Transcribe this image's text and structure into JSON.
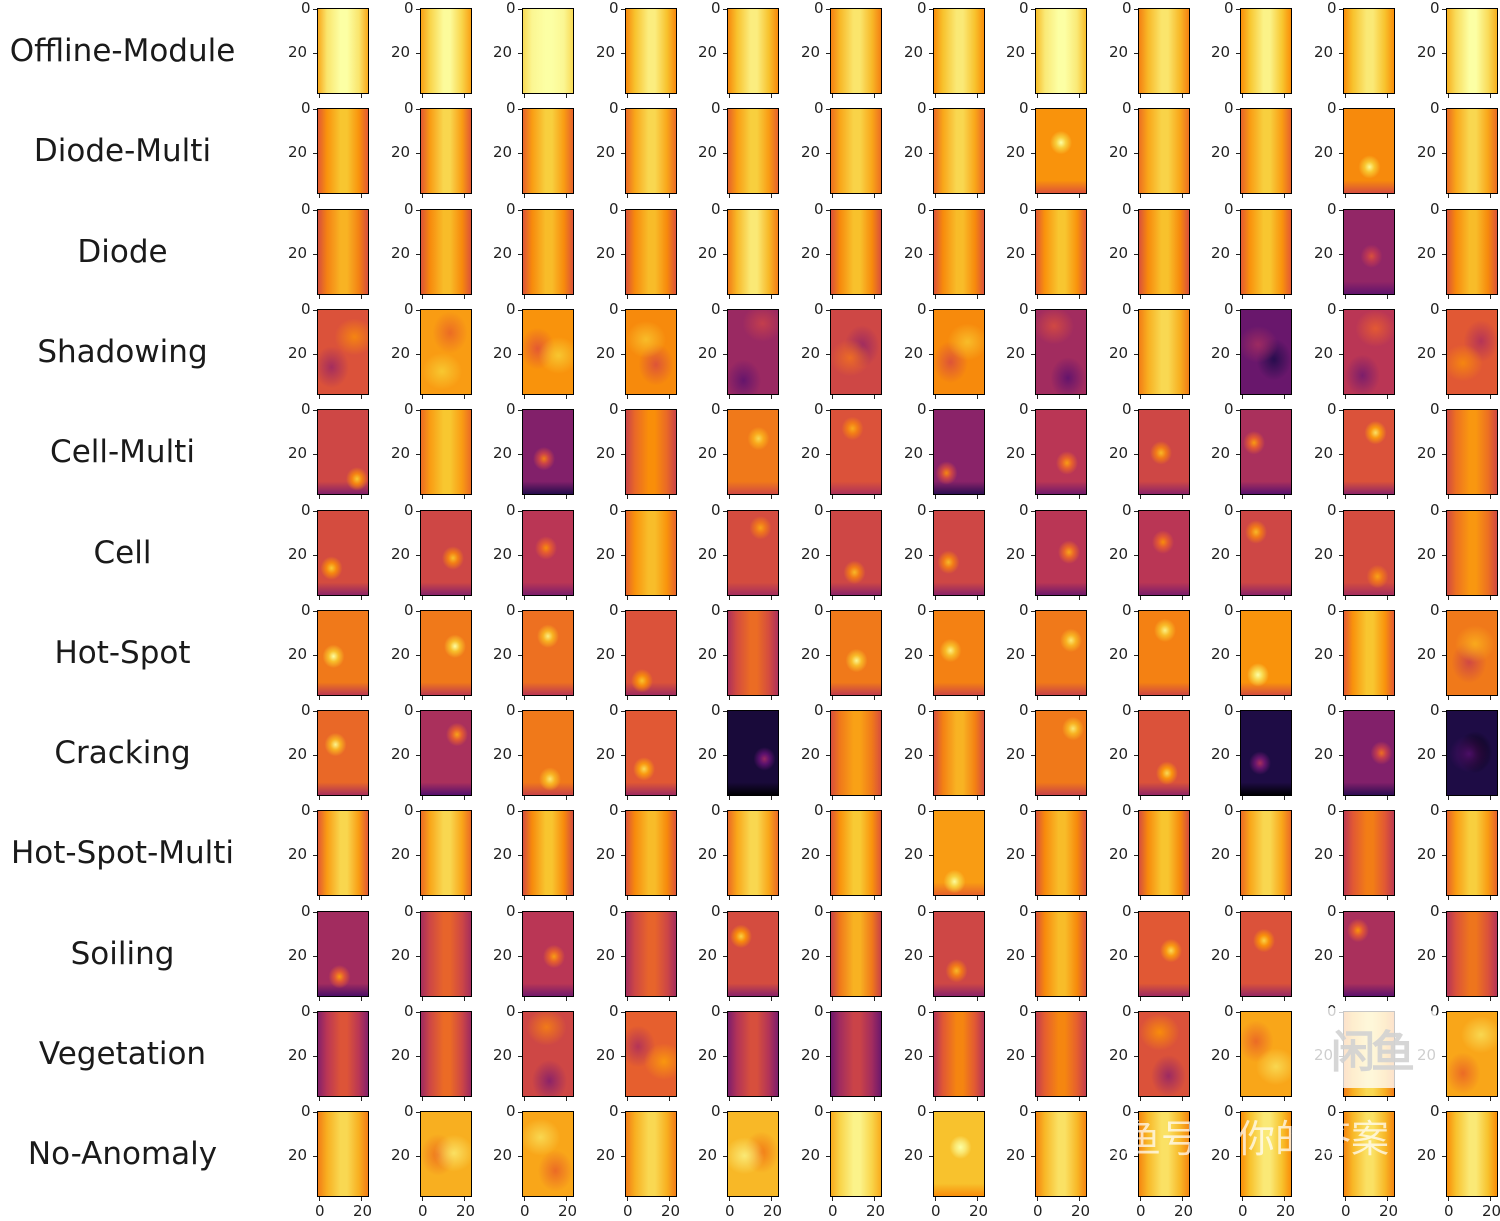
{
  "figure": {
    "rows": [
      {
        "label": "Offline-Module",
        "images": [
          [
            0.94,
            0.6,
            "v"
          ],
          [
            0.9,
            0.5,
            "v"
          ],
          [
            0.98,
            0.3,
            "v"
          ],
          [
            0.86,
            0.55,
            "v"
          ],
          [
            0.86,
            0.55,
            "v"
          ],
          [
            0.84,
            0.55,
            "v"
          ],
          [
            0.86,
            0.5,
            "v"
          ],
          [
            0.95,
            0.45,
            "v"
          ],
          [
            0.84,
            0.55,
            "v"
          ],
          [
            0.87,
            0.55,
            "v"
          ],
          [
            0.86,
            0.5,
            "v"
          ],
          [
            0.92,
            0.45,
            "v"
          ]
        ]
      },
      {
        "label": "Diode-Multi",
        "images": [
          [
            0.76,
            0.6,
            "v"
          ],
          [
            0.78,
            0.7,
            "v"
          ],
          [
            0.78,
            0.6,
            "v"
          ],
          [
            0.8,
            0.6,
            "v"
          ],
          [
            0.78,
            0.6,
            "v"
          ],
          [
            0.8,
            0.55,
            "v"
          ],
          [
            0.8,
            0.6,
            "v"
          ],
          [
            0.76,
            0.7,
            "s"
          ],
          [
            0.8,
            0.55,
            "v"
          ],
          [
            0.78,
            0.6,
            "v"
          ],
          [
            0.74,
            0.7,
            "s"
          ],
          [
            0.8,
            0.6,
            "v"
          ]
        ]
      },
      {
        "label": "Diode",
        "images": [
          [
            0.72,
            0.6,
            "v"
          ],
          [
            0.74,
            0.6,
            "v"
          ],
          [
            0.74,
            0.6,
            "v"
          ],
          [
            0.74,
            0.6,
            "v"
          ],
          [
            0.84,
            0.6,
            "v"
          ],
          [
            0.74,
            0.65,
            "v"
          ],
          [
            0.74,
            0.6,
            "v"
          ],
          [
            0.76,
            0.6,
            "v"
          ],
          [
            0.74,
            0.65,
            "v"
          ],
          [
            0.76,
            0.6,
            "v"
          ],
          [
            0.4,
            0.55,
            "s"
          ],
          [
            0.74,
            0.6,
            "v"
          ]
        ]
      },
      {
        "label": "Shadowing",
        "images": [
          [
            0.6,
            0.7,
            "b"
          ],
          [
            0.78,
            0.5,
            "b"
          ],
          [
            0.76,
            0.6,
            "b"
          ],
          [
            0.74,
            0.6,
            "b"
          ],
          [
            0.42,
            0.6,
            "b"
          ],
          [
            0.56,
            0.6,
            "b"
          ],
          [
            0.74,
            0.6,
            "b"
          ],
          [
            0.44,
            0.7,
            "b"
          ],
          [
            0.82,
            0.5,
            "v"
          ],
          [
            0.3,
            0.7,
            "b"
          ],
          [
            0.5,
            0.7,
            "b"
          ],
          [
            0.62,
            0.6,
            "b"
          ]
        ]
      },
      {
        "label": "Cell-Multi",
        "images": [
          [
            0.56,
            0.9,
            "s"
          ],
          [
            0.78,
            0.5,
            "v"
          ],
          [
            0.36,
            1.0,
            "s"
          ],
          [
            0.66,
            0.5,
            "v"
          ],
          [
            0.7,
            0.6,
            "s"
          ],
          [
            0.6,
            0.6,
            "s"
          ],
          [
            0.38,
            1.0,
            "s"
          ],
          [
            0.5,
            0.8,
            "s"
          ],
          [
            0.56,
            0.8,
            "s"
          ],
          [
            0.46,
            0.9,
            "s"
          ],
          [
            0.6,
            0.95,
            "s"
          ],
          [
            0.68,
            0.5,
            "v"
          ]
        ]
      },
      {
        "label": "Cell",
        "images": [
          [
            0.58,
            0.85,
            "s"
          ],
          [
            0.56,
            0.85,
            "s"
          ],
          [
            0.5,
            0.7,
            "s"
          ],
          [
            0.76,
            0.5,
            "v"
          ],
          [
            0.58,
            0.6,
            "s"
          ],
          [
            0.56,
            0.8,
            "s"
          ],
          [
            0.56,
            0.8,
            "s"
          ],
          [
            0.5,
            0.85,
            "s"
          ],
          [
            0.5,
            0.7,
            "s"
          ],
          [
            0.56,
            0.8,
            "s"
          ],
          [
            0.58,
            0.6,
            "s"
          ],
          [
            0.68,
            0.5,
            "v"
          ]
        ]
      },
      {
        "label": "Hot-Spot",
        "images": [
          [
            0.7,
            0.85,
            "s"
          ],
          [
            0.7,
            0.85,
            "s"
          ],
          [
            0.68,
            0.8,
            "s"
          ],
          [
            0.6,
            0.75,
            "s"
          ],
          [
            0.58,
            0.5,
            "v"
          ],
          [
            0.7,
            0.8,
            "s"
          ],
          [
            0.72,
            0.7,
            "s"
          ],
          [
            0.7,
            0.7,
            "s"
          ],
          [
            0.72,
            0.7,
            "s"
          ],
          [
            0.76,
            0.8,
            "s"
          ],
          [
            0.76,
            0.6,
            "v"
          ],
          [
            0.7,
            0.6,
            "b"
          ]
        ]
      },
      {
        "label": "Cracking",
        "images": [
          [
            0.66,
            0.9,
            "s"
          ],
          [
            0.46,
            0.95,
            "s"
          ],
          [
            0.7,
            0.7,
            "s"
          ],
          [
            0.62,
            0.85,
            "s"
          ],
          [
            0.1,
            0.9,
            "s"
          ],
          [
            0.7,
            0.5,
            "v"
          ],
          [
            0.72,
            0.6,
            "v"
          ],
          [
            0.7,
            0.7,
            "s"
          ],
          [
            0.6,
            0.9,
            "s"
          ],
          [
            0.12,
            0.95,
            "s"
          ],
          [
            0.36,
            0.9,
            "s"
          ],
          [
            0.12,
            0.6,
            "b"
          ]
        ]
      },
      {
        "label": "Hot-Spot-Multi",
        "images": [
          [
            0.78,
            0.7,
            "v"
          ],
          [
            0.8,
            0.6,
            "v"
          ],
          [
            0.74,
            0.7,
            "v"
          ],
          [
            0.74,
            0.6,
            "v"
          ],
          [
            0.8,
            0.6,
            "v"
          ],
          [
            0.76,
            0.65,
            "v"
          ],
          [
            0.78,
            0.6,
            "s"
          ],
          [
            0.74,
            0.6,
            "v"
          ],
          [
            0.74,
            0.7,
            "v"
          ],
          [
            0.8,
            0.6,
            "v"
          ],
          [
            0.62,
            0.5,
            "v"
          ],
          [
            0.78,
            0.6,
            "v"
          ]
        ]
      },
      {
        "label": "Soiling",
        "images": [
          [
            0.44,
            0.95,
            "s"
          ],
          [
            0.56,
            0.5,
            "v"
          ],
          [
            0.5,
            0.8,
            "s"
          ],
          [
            0.56,
            0.5,
            "v"
          ],
          [
            0.58,
            0.9,
            "s"
          ],
          [
            0.7,
            0.7,
            "v"
          ],
          [
            0.56,
            0.8,
            "s"
          ],
          [
            0.74,
            0.6,
            "v"
          ],
          [
            0.62,
            0.85,
            "s"
          ],
          [
            0.6,
            0.85,
            "s"
          ],
          [
            0.46,
            0.85,
            "s"
          ],
          [
            0.6,
            0.5,
            "v"
          ]
        ]
      },
      {
        "label": "Vegetation",
        "images": [
          [
            0.5,
            0.6,
            "v"
          ],
          [
            0.56,
            0.6,
            "v"
          ],
          [
            0.56,
            0.8,
            "b"
          ],
          [
            0.64,
            0.7,
            "b"
          ],
          [
            0.48,
            0.6,
            "v"
          ],
          [
            0.44,
            0.6,
            "v"
          ],
          [
            0.62,
            0.6,
            "v"
          ],
          [
            0.64,
            0.5,
            "v"
          ],
          [
            0.6,
            0.8,
            "b"
          ],
          [
            0.8,
            0.6,
            "b"
          ],
          [
            0.82,
            0.5,
            "v"
          ],
          [
            0.8,
            0.6,
            "b"
          ]
        ]
      },
      {
        "label": "No-Anomaly",
        "images": [
          [
            0.82,
            0.5,
            "v"
          ],
          [
            0.82,
            0.6,
            "b"
          ],
          [
            0.8,
            0.6,
            "b"
          ],
          [
            0.82,
            0.5,
            "v"
          ],
          [
            0.84,
            0.6,
            "b"
          ],
          [
            0.9,
            0.4,
            "v"
          ],
          [
            0.86,
            0.5,
            "s"
          ],
          [
            0.84,
            0.5,
            "v"
          ],
          [
            0.84,
            0.5,
            "v"
          ],
          [
            0.86,
            0.5,
            "v"
          ],
          [
            0.84,
            0.5,
            "v"
          ],
          [
            0.86,
            0.5,
            "v"
          ]
        ]
      }
    ],
    "y_ticks": [
      "0",
      "20"
    ],
    "x_ticks": [
      "0",
      "20"
    ],
    "colormap": [
      "#000004",
      "#1f0c48",
      "#550f6d",
      "#88226a",
      "#ba3655",
      "#e35933",
      "#f98e09",
      "#f8c932",
      "#fcffa4"
    ],
    "frame_color": "#000000"
  },
  "watermark": {
    "logo_text": "闲鱼",
    "caption": "闲鱼号：你的答案"
  }
}
